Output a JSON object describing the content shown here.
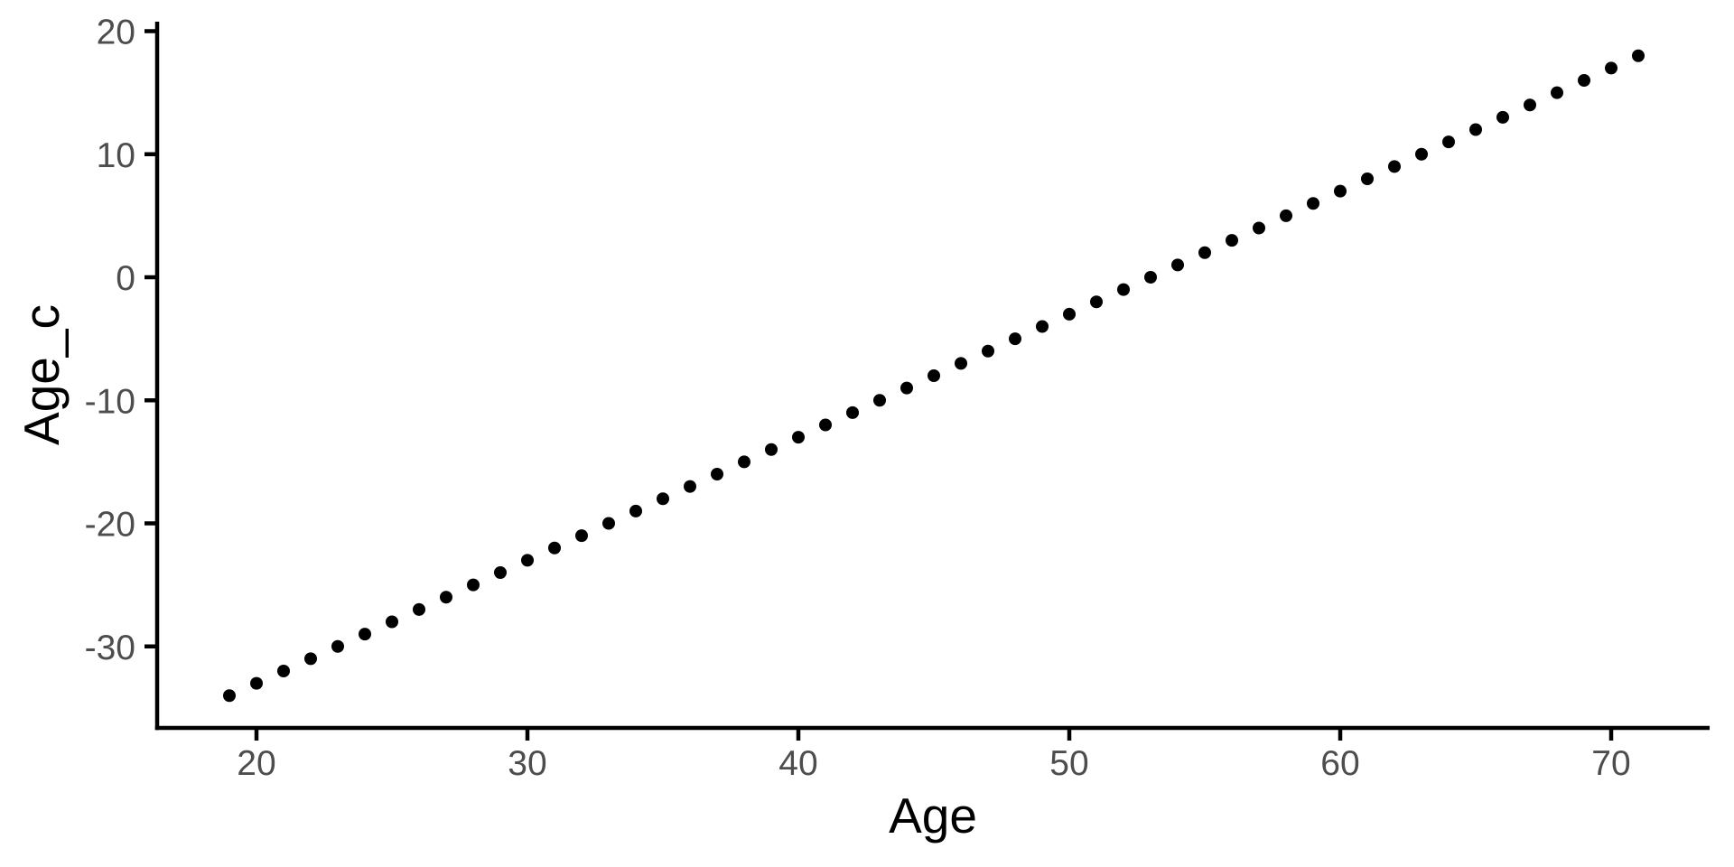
{
  "chart_data": {
    "type": "scatter",
    "title": "",
    "xlabel": "Age",
    "ylabel": "Age_c",
    "x": [
      19,
      20,
      21,
      22,
      23,
      24,
      25,
      26,
      27,
      28,
      29,
      30,
      31,
      32,
      33,
      34,
      35,
      36,
      37,
      38,
      39,
      40,
      41,
      42,
      43,
      44,
      45,
      46,
      47,
      48,
      49,
      50,
      51,
      52,
      53,
      54,
      55,
      56,
      57,
      58,
      59,
      60,
      61,
      62,
      63,
      64,
      65,
      66,
      67,
      68,
      69,
      70,
      71
    ],
    "y": [
      -34,
      -33,
      -32,
      -31,
      -30,
      -29,
      -28,
      -27,
      -26,
      -25,
      -24,
      -23,
      -22,
      -21,
      -20,
      -19,
      -18,
      -17,
      -16,
      -15,
      -14,
      -13,
      -12,
      -11,
      -10,
      -9,
      -8,
      -7,
      -6,
      -5,
      -4,
      -3,
      -2,
      -1,
      0,
      1,
      2,
      3,
      4,
      5,
      6,
      7,
      8,
      9,
      10,
      11,
      12,
      13,
      14,
      15,
      16,
      17,
      18
    ],
    "x_ticks": [
      20,
      30,
      40,
      50,
      60,
      70
    ],
    "y_ticks": [
      20,
      10,
      0,
      -10,
      -20,
      -30
    ],
    "xlim": [
      16.3,
      73.6
    ],
    "ylim": [
      -36.6,
      20.8
    ],
    "grid": false,
    "legend": false,
    "colors": {
      "point": "#000000",
      "axis_line": "#000000",
      "tick_label": "#4D4D4D",
      "axis_title": "#000000",
      "background": "#FFFFFF"
    }
  }
}
